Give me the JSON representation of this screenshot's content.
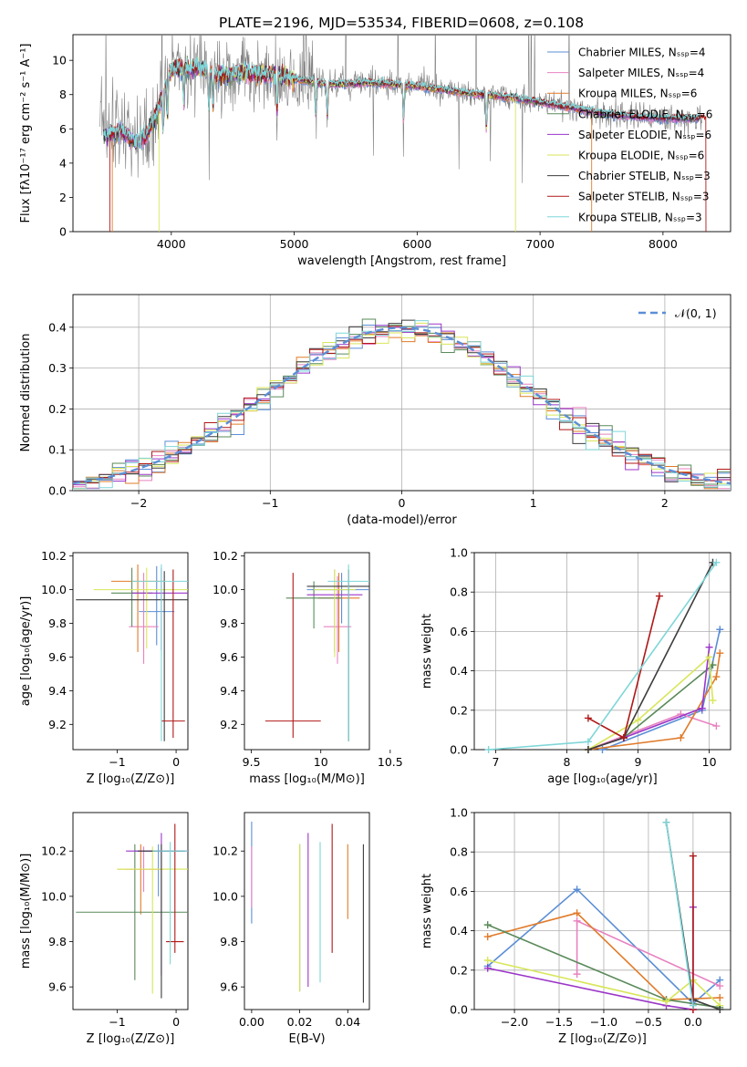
{
  "figure": {
    "title": "PLATE=2196, MJD=53534, FIBERID=0608, z=0.108"
  },
  "colors": {
    "Chabrier MILES": "#5b8ed6",
    "Salpeter MILES": "#e882c0",
    "Kroupa MILES": "#e07b2a",
    "Chabrier ELODIE": "#5a8a5a",
    "Salpeter ELODIE": "#9b36c8",
    "Kroupa ELODIE": "#d8e65a",
    "Chabrier STELIB": "#3c3c3c",
    "Salpeter STELIB": "#b01818",
    "Kroupa STELIB": "#7fd6d8",
    "data": "#808080"
  },
  "chart_data": [
    {
      "id": "spectrum",
      "type": "line",
      "xlabel": "wavelength [Angstrom, rest frame]",
      "ylabel": "Flux [fλ10⁻¹⁷ erg cm⁻² s⁻¹ A⁻¹]",
      "xlim": [
        3200,
        8550
      ],
      "ylim": [
        0,
        11.5
      ],
      "xticks": [
        4000,
        5000,
        6000,
        7000,
        8000
      ],
      "yticks": [
        0,
        2,
        4,
        6,
        8,
        10
      ],
      "grid": false,
      "legend": "top-right",
      "legend_entries": [
        "Chabrier MILES, N_SSP=4",
        "Salpeter MILES, N_SSP=4",
        "Kroupa MILES, N_SSP=6",
        "Chabrier ELODIE, N_SSP=6",
        "Salpeter ELODIE, N_SSP=6",
        "Kroupa ELODIE, N_SSP=6",
        "Chabrier STELIB, N_SSP=3",
        "Salpeter STELIB, N_SSP=3",
        "Kroupa STELIB, N_SSP=3"
      ],
      "continuum": [
        [
          3450,
          5.6
        ],
        [
          3600,
          5.8
        ],
        [
          3700,
          5.2
        ],
        [
          3800,
          5.6
        ],
        [
          3900,
          7.3
        ],
        [
          4000,
          9.5
        ],
        [
          4200,
          9.6
        ],
        [
          4400,
          9.1
        ],
        [
          4600,
          9.3
        ],
        [
          4800,
          9.2
        ],
        [
          5000,
          8.9
        ],
        [
          5300,
          8.6
        ],
        [
          5600,
          8.7
        ],
        [
          6000,
          8.5
        ],
        [
          6400,
          8.1
        ],
        [
          6800,
          7.8
        ],
        [
          7200,
          7.3
        ],
        [
          7600,
          6.8
        ],
        [
          8000,
          6.6
        ],
        [
          8300,
          6.6
        ]
      ],
      "edges": {
        "Kroupa MILES": [
          3520,
          7420
        ],
        "Kroupa ELODIE": [
          3900,
          6800
        ],
        "Salpeter STELIB": [
          3500,
          8350
        ],
        "data": [
          3420,
          8320
        ]
      }
    },
    {
      "id": "residuals",
      "type": "histogram",
      "xlabel": "(data-model)/error",
      "ylabel": "Normed distribution",
      "xlim": [
        -2.5,
        2.5
      ],
      "ylim": [
        0,
        0.48
      ],
      "xticks": [
        -2,
        -1,
        0,
        1,
        2
      ],
      "yticks": [
        0.0,
        0.1,
        0.2,
        0.3,
        0.4
      ],
      "grid": true,
      "legend": "top-right",
      "legend_label": "𝒩(0, 1)",
      "bin_width": 0.1
    },
    {
      "id": "age_vs_Z",
      "type": "errorbar",
      "xlabel": "Z [log₁₀(Z/Z⊙)]",
      "ylabel": "age  [log₁₀(age/yr)]",
      "xlim": [
        -1.75,
        0.2
      ],
      "ylim": [
        9.05,
        10.22
      ],
      "xticks": [
        -1,
        0
      ],
      "yticks": [
        9.2,
        9.4,
        9.6,
        9.8,
        10.0,
        10.2
      ],
      "points": [
        {
          "model": "Chabrier MILES",
          "x": -0.33,
          "xerr": 0.3,
          "y": 9.87,
          "yerr": [
            0.2,
            0.27
          ]
        },
        {
          "model": "Salpeter MILES",
          "x": -0.55,
          "xerr": 0.25,
          "y": 9.78,
          "yerr": [
            0.22,
            0.32
          ]
        },
        {
          "model": "Kroupa MILES",
          "x": -0.65,
          "xerr": 0.45,
          "y": 10.05,
          "yerr": [
            0.42,
            0.1
          ]
        },
        {
          "model": "Chabrier ELODIE",
          "x": -0.75,
          "xerr": 0.35,
          "y": 9.98,
          "yerr": [
            0.2,
            0.15
          ]
        },
        {
          "model": "Salpeter ELODIE",
          "x": -0.25,
          "xerr": 0.5,
          "y": 9.98,
          "yerr": [
            0.34,
            0.15
          ]
        },
        {
          "model": "Kroupa ELODIE",
          "x": -0.5,
          "xerr": 0.9,
          "y": 10.0,
          "yerr": [
            0.35,
            0.13
          ]
        },
        {
          "model": "Chabrier STELIB",
          "x": -0.2,
          "xerr": 1.5,
          "y": 9.94,
          "yerr": [
            0.84,
            0.17
          ]
        },
        {
          "model": "Salpeter STELIB",
          "x": -0.05,
          "xerr": 0.2,
          "y": 9.22,
          "yerr": [
            0.1,
            0.9
          ]
        },
        {
          "model": "Kroupa STELIB",
          "x": -0.25,
          "xerr": 0.5,
          "y": 10.05,
          "yerr": [
            0.95,
            0.1
          ]
        }
      ]
    },
    {
      "id": "age_vs_mass",
      "type": "errorbar",
      "xlabel": "mass [log₁₀(M/M⊙)]",
      "ylabel": "",
      "xlim": [
        9.45,
        10.35
      ],
      "ylim": [
        9.05,
        10.22
      ],
      "xticks": [
        9.5,
        10.0,
        10.5
      ],
      "yticks": [
        9.2,
        9.4,
        9.6,
        9.8,
        10.0,
        10.2
      ],
      "points": [
        {
          "model": "Chabrier MILES",
          "x": 10.15,
          "xerr": 0.25,
          "y": 10.0,
          "yerr": [
            0.2,
            0.1
          ]
        },
        {
          "model": "Salpeter MILES",
          "x": 10.12,
          "xerr": 0.1,
          "y": 9.78,
          "yerr": [
            0.22,
            0.3
          ]
        },
        {
          "model": "Kroupa MILES",
          "x": 10.13,
          "xerr": 0.15,
          "y": 9.95,
          "yerr": [
            0.32,
            0.15
          ]
        },
        {
          "model": "Chabrier ELODIE",
          "x": 9.95,
          "xerr": 0.2,
          "y": 9.95,
          "yerr": [
            0.18,
            0.1
          ]
        },
        {
          "model": "Salpeter ELODIE",
          "x": 10.1,
          "xerr": 0.2,
          "y": 9.97,
          "yerr": [
            0.34,
            0.15
          ]
        },
        {
          "model": "Kroupa ELODIE",
          "x": 10.1,
          "xerr": 0.15,
          "y": 10.0,
          "yerr": [
            0.4,
            0.12
          ]
        },
        {
          "model": "Chabrier STELIB",
          "x": 10.2,
          "xerr": 0.3,
          "y": 10.02,
          "yerr": [
            0.92,
            0.1
          ]
        },
        {
          "model": "Salpeter STELIB",
          "x": 9.8,
          "xerr": 0.2,
          "y": 9.22,
          "yerr": [
            0.1,
            0.88
          ]
        },
        {
          "model": "Kroupa STELIB",
          "x": 10.2,
          "xerr": 0.15,
          "y": 10.05,
          "yerr": [
            0.95,
            0.1
          ]
        }
      ]
    },
    {
      "id": "mass_weight_vs_age",
      "type": "line",
      "xlabel": "age  [log₁₀(age/yr)]",
      "ylabel": "mass weight",
      "xlim": [
        6.7,
        10.3
      ],
      "ylim": [
        0,
        1.0
      ],
      "xticks": [
        7,
        8,
        9,
        10
      ],
      "yticks": [
        0.0,
        0.2,
        0.4,
        0.6,
        0.8,
        1.0
      ],
      "grid": true,
      "series": [
        {
          "model": "Chabrier MILES",
          "points": [
            [
              8.5,
              0.0
            ],
            [
              9.9,
              0.2
            ],
            [
              10.15,
              0.61
            ]
          ]
        },
        {
          "model": "Salpeter MILES",
          "points": [
            [
              8.3,
              0.0
            ],
            [
              9.6,
              0.18
            ],
            [
              10.1,
              0.12
            ]
          ]
        },
        {
          "model": "Kroupa MILES",
          "points": [
            [
              8.3,
              0.0
            ],
            [
              9.6,
              0.06
            ],
            [
              10.1,
              0.37
            ],
            [
              10.15,
              0.49
            ]
          ]
        },
        {
          "model": "Chabrier ELODIE",
          "points": [
            [
              8.3,
              0.0
            ],
            [
              8.8,
              0.06
            ],
            [
              10.05,
              0.43
            ]
          ]
        },
        {
          "model": "Salpeter ELODIE",
          "points": [
            [
              8.3,
              0.0
            ],
            [
              8.8,
              0.06
            ],
            [
              9.9,
              0.21
            ],
            [
              10.0,
              0.52
            ]
          ]
        },
        {
          "model": "Kroupa ELODIE",
          "points": [
            [
              8.3,
              0.0
            ],
            [
              9.0,
              0.15
            ],
            [
              10.0,
              0.47
            ],
            [
              10.05,
              0.25
            ]
          ]
        },
        {
          "model": "Chabrier STELIB",
          "points": [
            [
              8.3,
              0.0
            ],
            [
              8.8,
              0.06
            ],
            [
              10.05,
              0.95
            ]
          ]
        },
        {
          "model": "Salpeter STELIB",
          "points": [
            [
              8.3,
              0.16
            ],
            [
              8.8,
              0.06
            ],
            [
              9.3,
              0.78
            ]
          ]
        },
        {
          "model": "Kroupa STELIB",
          "points": [
            [
              6.9,
              0.0
            ],
            [
              8.3,
              0.04
            ],
            [
              10.1,
              0.95
            ]
          ]
        }
      ]
    },
    {
      "id": "mass_vs_Z",
      "type": "errorbar",
      "xlabel": "Z [log₁₀(Z/Z⊙)]",
      "ylabel": "mass [log₁₀(M/M⊙)]",
      "xlim": [
        -1.75,
        0.2
      ],
      "ylim": [
        9.5,
        10.37
      ],
      "xticks": [
        -1,
        0
      ],
      "yticks": [
        9.6,
        9.8,
        10.0,
        10.2
      ],
      "points": [
        {
          "model": "Chabrier MILES",
          "x": -0.3,
          "xerr": 0.4,
          "y": 10.2,
          "yerr": [
            0.2,
            0.03
          ]
        },
        {
          "model": "Salpeter MILES",
          "x": -0.55,
          "xerr": 0.3,
          "y": 10.12,
          "yerr": [
            0.1,
            0.1
          ]
        },
        {
          "model": "Kroupa MILES",
          "x": -0.6,
          "xerr": 0.4,
          "y": 10.12,
          "yerr": [
            0.2,
            0.11
          ]
        },
        {
          "model": "Chabrier ELODIE",
          "x": -0.7,
          "xerr": 1.0,
          "y": 9.93,
          "yerr": [
            0.3,
            0.3
          ]
        },
        {
          "model": "Salpeter ELODIE",
          "x": -0.25,
          "xerr": 0.6,
          "y": 10.2,
          "yerr": [
            0.55,
            0.08
          ]
        },
        {
          "model": "Kroupa ELODIE",
          "x": -0.4,
          "xerr": 0.6,
          "y": 10.12,
          "yerr": [
            0.55,
            0.1
          ]
        },
        {
          "model": "Chabrier STELIB",
          "x": -0.25,
          "xerr": 0.4,
          "y": 10.2,
          "yerr": [
            0.65,
            0.03
          ]
        },
        {
          "model": "Salpeter STELIB",
          "x": -0.02,
          "xerr": 0.15,
          "y": 9.8,
          "yerr": [
            0.05,
            0.52
          ]
        },
        {
          "model": "Kroupa STELIB",
          "x": -0.1,
          "xerr": 0.3,
          "y": 10.2,
          "yerr": [
            0.5,
            0.04
          ]
        }
      ]
    },
    {
      "id": "mass_vs_ebv",
      "type": "errorbar",
      "xlabel": "E(B-V)",
      "ylabel": "",
      "xlim": [
        -0.003,
        0.049
      ],
      "ylim": [
        9.5,
        10.37
      ],
      "xticks": [
        0.0,
        0.02,
        0.04
      ],
      "xtick_labels": [
        "0.00",
        "0.02",
        "0.04"
      ],
      "yticks": [
        9.6,
        9.8,
        10.0,
        10.2
      ],
      "points": [
        {
          "model": "Chabrier MILES",
          "x": 0.0,
          "y": 10.1,
          "yerr": [
            0.22,
            0.23
          ]
        },
        {
          "model": "Salpeter MILES",
          "x": 0.0,
          "y": 10.1,
          "yerr": [
            0.15,
            0.12
          ]
        },
        {
          "model": "Kroupa MILES",
          "x": 0.04,
          "y": 10.08,
          "yerr": [
            0.18,
            0.15
          ]
        },
        {
          "model": "Chabrier ELODIE",
          "x": 0.02,
          "y": 9.9,
          "yerr": [
            0.32,
            0.33
          ]
        },
        {
          "model": "Salpeter ELODIE",
          "x": 0.0235,
          "y": 9.98,
          "yerr": [
            0.38,
            0.3
          ]
        },
        {
          "model": "Kroupa ELODIE",
          "x": 0.02,
          "y": 9.9,
          "yerr": [
            0.32,
            0.33
          ]
        },
        {
          "model": "Chabrier STELIB",
          "x": 0.0465,
          "y": 9.88,
          "yerr": [
            0.35,
            0.35
          ]
        },
        {
          "model": "Salpeter STELIB",
          "x": 0.0335,
          "y": 10.03,
          "yerr": [
            0.28,
            0.29
          ]
        },
        {
          "model": "Kroupa STELIB",
          "x": 0.0285,
          "y": 9.93,
          "yerr": [
            0.31,
            0.31
          ]
        }
      ]
    },
    {
      "id": "mass_weight_vs_Z",
      "type": "line",
      "xlabel": "Z [log₁₀(Z/Z⊙)]",
      "ylabel": "mass weight",
      "xlim": [
        -2.45,
        0.42
      ],
      "ylim": [
        0,
        1.0
      ],
      "xticks": [
        -2.0,
        -1.5,
        -1.0,
        -0.5,
        0.0
      ],
      "xtick_labels": [
        "−2.0",
        "−1.5",
        "−1.0",
        "−0.5",
        "0.0"
      ],
      "yticks": [
        0.0,
        0.2,
        0.4,
        0.6,
        0.8,
        1.0
      ],
      "grid": true,
      "series": [
        {
          "model": "Chabrier MILES",
          "points": [
            [
              -2.3,
              0.22
            ],
            [
              -1.3,
              0.61
            ],
            [
              0.0,
              0.03
            ],
            [
              0.3,
              0.15
            ]
          ]
        },
        {
          "model": "Salpeter MILES",
          "points": [
            [
              -1.3,
              0.18
            ],
            [
              -1.3,
              0.45
            ],
            [
              0.3,
              0.12
            ]
          ]
        },
        {
          "model": "Kroupa MILES",
          "points": [
            [
              -2.3,
              0.37
            ],
            [
              -1.3,
              0.49
            ],
            [
              -0.3,
              0.05
            ],
            [
              0.3,
              0.06
            ]
          ]
        },
        {
          "model": "Chabrier ELODIE",
          "points": [
            [
              -2.3,
              0.43
            ],
            [
              -0.3,
              0.05
            ],
            [
              0.3,
              0.01
            ]
          ]
        },
        {
          "model": "Salpeter ELODIE",
          "points": [
            [
              -2.3,
              0.21
            ],
            [
              -0.3,
              0.02
            ],
            [
              0.0,
              0.0
            ],
            [
              0.0,
              0.52
            ]
          ]
        },
        {
          "model": "Kroupa ELODIE",
          "points": [
            [
              -2.3,
              0.25
            ],
            [
              -0.3,
              0.04
            ],
            [
              0.0,
              0.15
            ],
            [
              0.3,
              0.02
            ]
          ]
        },
        {
          "model": "Chabrier STELIB",
          "points": [
            [
              -0.3,
              0.95
            ],
            [
              0.0,
              0.05
            ],
            [
              0.3,
              0.0
            ]
          ]
        },
        {
          "model": "Salpeter STELIB",
          "points": [
            [
              0.0,
              0.0
            ],
            [
              0.0,
              0.78
            ]
          ]
        },
        {
          "model": "Kroupa STELIB",
          "points": [
            [
              -0.3,
              0.95
            ],
            [
              0.0,
              0.02
            ]
          ]
        }
      ]
    }
  ]
}
